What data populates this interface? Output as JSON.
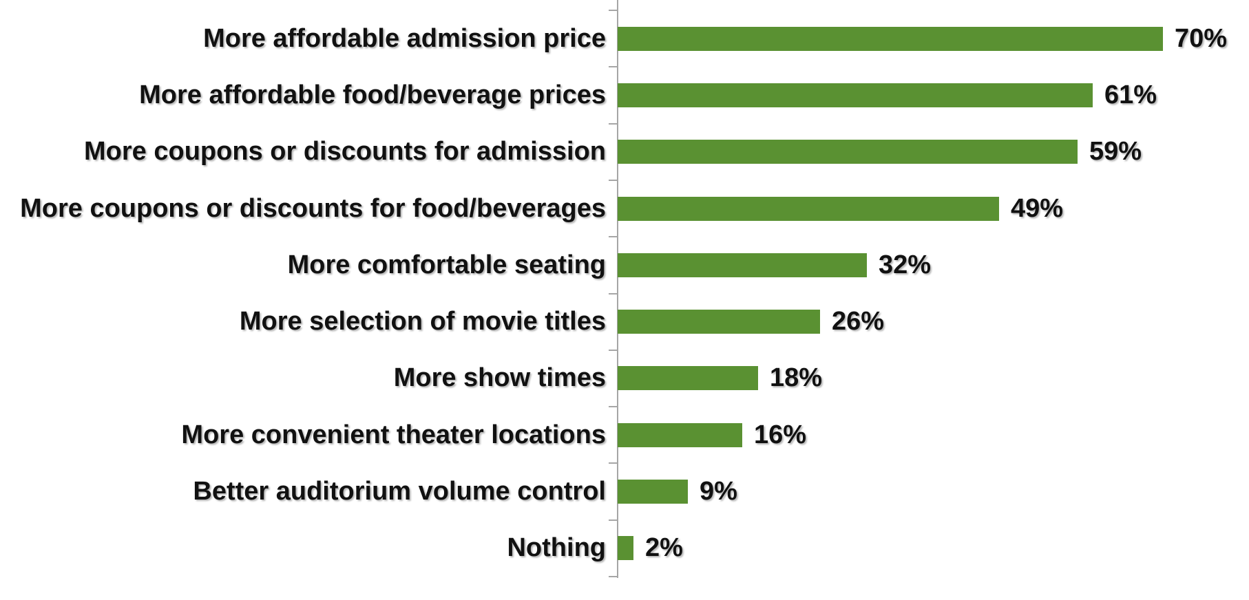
{
  "chart_data": {
    "type": "bar",
    "orientation": "horizontal",
    "categories": [
      "More affordable admission price",
      "More affordable food/beverage prices",
      "More coupons or discounts for admission",
      "More coupons or discounts for food/beverages",
      "More comfortable seating",
      "More selection of movie titles",
      "More show times",
      "More convenient theater locations",
      "Better auditorium volume control",
      "Nothing"
    ],
    "values": [
      70,
      61,
      59,
      49,
      32,
      26,
      18,
      16,
      9,
      2
    ],
    "data_labels": [
      "70%",
      "61%",
      "59%",
      "49%",
      "32%",
      "26%",
      "18%",
      "16%",
      "9%",
      "2%"
    ],
    "xlabel": "",
    "ylabel": "",
    "grid": false,
    "legend": false,
    "bar_color": "#5a9132",
    "axis_color": "#a6a6a6",
    "label_color": "#111111",
    "background_color": "#ffffff"
  }
}
